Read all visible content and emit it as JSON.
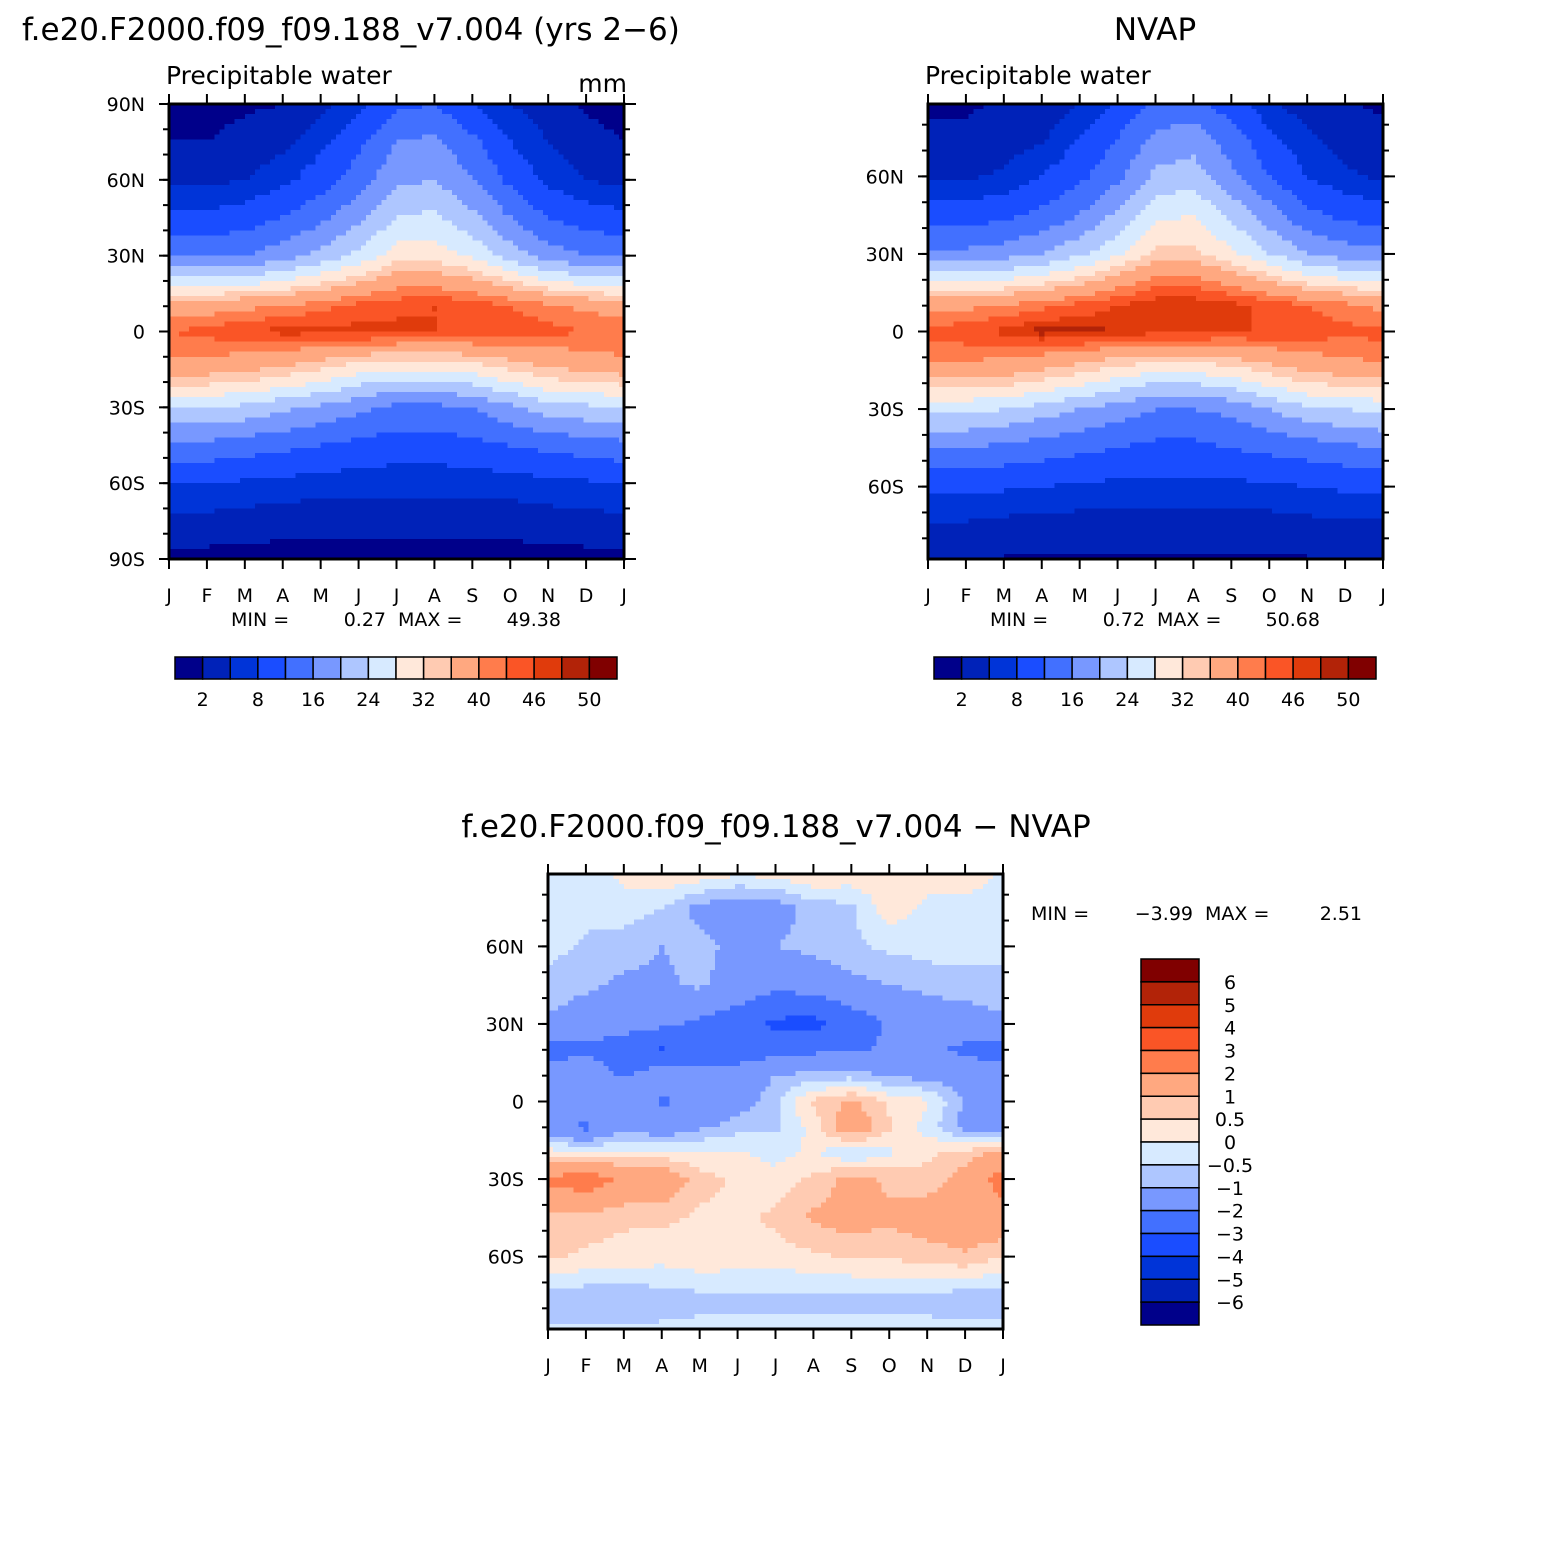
{
  "chart_data": [
    {
      "type": "heatmap",
      "panel": "model",
      "title": "f.e20.F2000.f09_f09.188_v7.004 (yrs 2−6)",
      "subtitle": "Precipitable water",
      "units": "mm",
      "x_ticks": [
        "J",
        "F",
        "M",
        "A",
        "M",
        "J",
        "J",
        "A",
        "S",
        "O",
        "N",
        "D",
        "J"
      ],
      "y_ticks": [
        "90N",
        "60N",
        "30N",
        "0",
        "30S",
        "60S",
        "90S"
      ],
      "min_label": "MIN =",
      "min_value": "0.27",
      "max_label": "MAX =",
      "max_value": "49.38",
      "levels": [
        2,
        5,
        8,
        12,
        16,
        20,
        24,
        28,
        32,
        35,
        40,
        43,
        46,
        48,
        50
      ],
      "level_labels": [
        "2",
        "8",
        "16",
        "24",
        "32",
        "40",
        "46",
        "50"
      ],
      "colors": [
        "#00008a",
        "#0022b8",
        "#0034d8",
        "#1a4dff",
        "#4270ff",
        "#7898ff",
        "#aec6ff",
        "#d7eaff",
        "#ffe8da",
        "#ffcbb2",
        "#ffa880",
        "#ff7c4c",
        "#fa5526",
        "#e03b0c",
        "#b22308",
        "#800000"
      ],
      "field": {
        "months": [
          "J",
          "F",
          "M",
          "A",
          "M",
          "J",
          "J",
          "A",
          "S",
          "O",
          "N",
          "D",
          "J"
        ],
        "lats": [
          90,
          75,
          60,
          45,
          30,
          20,
          10,
          0,
          -10,
          -20,
          -30,
          -45,
          -60,
          -75,
          -90
        ],
        "values": [
          [
            1,
            1,
            1.5,
            2,
            4,
            7,
            11,
            12,
            8,
            5,
            3,
            1.5,
            1
          ],
          [
            2,
            2,
            3,
            4,
            7,
            11,
            16,
            17,
            13,
            8,
            5,
            3,
            2
          ],
          [
            4,
            4,
            5,
            7,
            10,
            14,
            19,
            20,
            16,
            11,
            7,
            5,
            4
          ],
          [
            9,
            9,
            10,
            12,
            15,
            19,
            24,
            25,
            21,
            16,
            12,
            10,
            9
          ],
          [
            15,
            15,
            16,
            18,
            21,
            25,
            30,
            30,
            27,
            22,
            18,
            16,
            15
          ],
          [
            25,
            25,
            26,
            28,
            31,
            34,
            38,
            38,
            36,
            32,
            28,
            26,
            25
          ],
          [
            38,
            38,
            39,
            40,
            42,
            44,
            45,
            46,
            45,
            43,
            41,
            39,
            38
          ],
          [
            43,
            44,
            46,
            47,
            47,
            47,
            47,
            46,
            46,
            45,
            44,
            43,
            43
          ],
          [
            40,
            40,
            39,
            38,
            36,
            34,
            33,
            33,
            34,
            36,
            38,
            39,
            40
          ],
          [
            33,
            33,
            32,
            30,
            28,
            25,
            23,
            23,
            25,
            28,
            31,
            32,
            33
          ],
          [
            24,
            24,
            23,
            21,
            19,
            17,
            15,
            15,
            16,
            19,
            22,
            23,
            24
          ],
          [
            15,
            15,
            14,
            13,
            12,
            11,
            10,
            10,
            11,
            12,
            13,
            14,
            15
          ],
          [
            8,
            8,
            7.5,
            7,
            6.5,
            6,
            6,
            6,
            6,
            6.5,
            7,
            7.5,
            8
          ],
          [
            4,
            4,
            3.5,
            3,
            3,
            3,
            3,
            3,
            3,
            3,
            3.5,
            4,
            4
          ],
          [
            1,
            1,
            1,
            1,
            1,
            1,
            1,
            1,
            1,
            1,
            1,
            1,
            1
          ]
        ]
      }
    },
    {
      "type": "heatmap",
      "panel": "obs",
      "title": "NVAP",
      "subtitle": "Precipitable water",
      "x_ticks": [
        "J",
        "F",
        "M",
        "A",
        "M",
        "J",
        "J",
        "A",
        "S",
        "O",
        "N",
        "D",
        "J"
      ],
      "y_ticks": [
        "60N",
        "30N",
        "0",
        "30S",
        "60S"
      ],
      "min_label": "MIN =",
      "min_value": "0.72",
      "max_label": "MAX =",
      "max_value": "50.68",
      "levels": [
        2,
        5,
        8,
        12,
        16,
        20,
        24,
        28,
        32,
        35,
        40,
        43,
        46,
        48,
        50
      ],
      "level_labels": [
        "2",
        "8",
        "16",
        "24",
        "32",
        "40",
        "46",
        "50"
      ],
      "colors": [
        "#00008a",
        "#0022b8",
        "#0034d8",
        "#1a4dff",
        "#4270ff",
        "#7898ff",
        "#aec6ff",
        "#d7eaff",
        "#ffe8da",
        "#ffcbb2",
        "#ffa880",
        "#ff7c4c",
        "#fa5526",
        "#e03b0c",
        "#b22308",
        "#800000"
      ],
      "field": {
        "months": [
          "J",
          "F",
          "M",
          "A",
          "M",
          "J",
          "J",
          "A",
          "S",
          "O",
          "N",
          "D",
          "J"
        ],
        "lats": [
          90,
          75,
          60,
          45,
          30,
          20,
          10,
          0,
          -10,
          -20,
          -30,
          -45,
          -60,
          -75,
          -90
        ],
        "values": [
          [
            1.5,
            1.5,
            2,
            2.5,
            4.5,
            8,
            12,
            13,
            9,
            5,
            3,
            2,
            1.5
          ],
          [
            2.5,
            2.5,
            3.5,
            4.5,
            8,
            12,
            17,
            18,
            14,
            9,
            5.5,
            3.5,
            2.5
          ],
          [
            4.5,
            4.5,
            5.5,
            8,
            11,
            15,
            21,
            22,
            17,
            12,
            8,
            5.5,
            4.5
          ],
          [
            10,
            10,
            11,
            13,
            16,
            21,
            27,
            28,
            23,
            18,
            13,
            11,
            10
          ],
          [
            17,
            17,
            18,
            20,
            23,
            27,
            33,
            33,
            29,
            24,
            20,
            18,
            17
          ],
          [
            27,
            27,
            28,
            30,
            33,
            37,
            41,
            41,
            38,
            34,
            30,
            28,
            27
          ],
          [
            39,
            39,
            40,
            42,
            44,
            46,
            48,
            48,
            47,
            45,
            43,
            41,
            39
          ],
          [
            44,
            45,
            47,
            49,
            49,
            48,
            47,
            47,
            46,
            46,
            45,
            44,
            44
          ],
          [
            41,
            41,
            40,
            39,
            37,
            35,
            34,
            34,
            35,
            37,
            39,
            40,
            41
          ],
          [
            34,
            34,
            33,
            31,
            29,
            26,
            24,
            24,
            26,
            29,
            32,
            33,
            34
          ],
          [
            25,
            25,
            24,
            22,
            20,
            18,
            16,
            16,
            17,
            20,
            23,
            24,
            25
          ],
          [
            16,
            16,
            15,
            14,
            13,
            12,
            11,
            11,
            12,
            13,
            14,
            15,
            16
          ],
          [
            9,
            9,
            8.5,
            8,
            7.5,
            7,
            7,
            7,
            7,
            7.5,
            8,
            8.5,
            9
          ],
          [
            4.5,
            4.5,
            4,
            3.5,
            3.5,
            3.5,
            3.5,
            3.5,
            3.5,
            3.5,
            4,
            4.5,
            4.5
          ],
          [
            1.5,
            1.5,
            1.5,
            1.5,
            1.5,
            1.5,
            1.5,
            1.5,
            1.5,
            1.5,
            1.5,
            1.5,
            1.5
          ]
        ]
      }
    },
    {
      "type": "heatmap",
      "panel": "diff",
      "title": "f.e20.F2000.f09_f09.188_v7.004 − NVAP",
      "x_ticks": [
        "J",
        "F",
        "M",
        "A",
        "M",
        "J",
        "J",
        "A",
        "S",
        "O",
        "N",
        "D",
        "J"
      ],
      "y_ticks": [
        "60N",
        "30N",
        "0",
        "30S",
        "60S"
      ],
      "min_label": "MIN =",
      "min_value": "−3.99",
      "max_label": "MAX =",
      "max_value": "2.51",
      "levels": [
        -6,
        -5,
        -4,
        -3,
        -2,
        -1,
        -0.5,
        0,
        0.5,
        1,
        2,
        3,
        4,
        5,
        6
      ],
      "level_labels": [
        "6",
        "5",
        "4",
        "3",
        "2",
        "1",
        "0.5",
        "0",
        "−0.5",
        "−1",
        "−2",
        "−3",
        "−4",
        "−5",
        "−6"
      ],
      "colors": [
        "#00008a",
        "#0022b8",
        "#0034d8",
        "#1a4dff",
        "#4270ff",
        "#7898ff",
        "#aec6ff",
        "#d7eaff",
        "#ffe8da",
        "#ffcbb2",
        "#ffa880",
        "#ff7c4c",
        "#fa5526",
        "#e03b0c",
        "#b22308",
        "#800000"
      ],
      "field": {
        "months": [
          "J",
          "F",
          "M",
          "A",
          "M",
          "J",
          "J",
          "A",
          "S",
          "O",
          "N",
          "D",
          "J"
        ],
        "lats": [
          90,
          75,
          60,
          45,
          30,
          20,
          10,
          0,
          -10,
          -20,
          -30,
          -45,
          -60,
          -75,
          -90
        ],
        "values": [
          [
            -0.3,
            -0.3,
            0.2,
            0.6,
            0.6,
            0.3,
            0.4,
            0.7,
            0.5,
            0.3,
            0.2,
            0.6,
            -0.2
          ],
          [
            -0.2,
            -0.3,
            -0.2,
            -0.5,
            -1.2,
            -1.5,
            -1.3,
            -0.8,
            -0.6,
            0.3,
            -0.1,
            -0.3,
            -0.2
          ],
          [
            -0.3,
            -0.6,
            -0.8,
            -1,
            -0.8,
            -1.2,
            -1,
            -0.8,
            -0.6,
            -0.4,
            -0.3,
            -0.3,
            -0.3
          ],
          [
            -0.7,
            -0.9,
            -1.1,
            -1.1,
            -0.9,
            -1.3,
            -1.8,
            -1.6,
            -1.2,
            -1,
            -0.8,
            -0.7,
            -0.7
          ],
          [
            -1.1,
            -1.4,
            -1.6,
            -1.8,
            -2.2,
            -2.6,
            -3.2,
            -3.3,
            -2.6,
            -1.9,
            -1.6,
            -1.4,
            -1.1
          ],
          [
            -2.3,
            -2.2,
            -2.6,
            -3.1,
            -2.5,
            -2.5,
            -2.4,
            -2.2,
            -2.2,
            -1.8,
            -1.8,
            -2.2,
            -2.3
          ],
          [
            -1.6,
            -1.4,
            -2.1,
            -1.4,
            -1.8,
            -1.6,
            -1,
            -0.8,
            -0.7,
            -1.1,
            -1.2,
            -1.5,
            -1.6
          ],
          [
            -1.1,
            -1.5,
            -1.2,
            -2.1,
            -1.9,
            -1.4,
            -0.6,
            0.6,
            1.1,
            0.4,
            0.1,
            -1.1,
            -1.1
          ],
          [
            -1.6,
            -2.2,
            -1.2,
            -1.6,
            -1.1,
            -0.7,
            -0.6,
            0.2,
            1.6,
            0.6,
            -0.2,
            -1.2,
            -1.6
          ],
          [
            0.3,
            0.1,
            0.2,
            0.2,
            0.1,
            0.1,
            -0.2,
            0.1,
            -0.5,
            -0.1,
            0.4,
            0.7,
            1.3
          ],
          [
            2.2,
            2.6,
            1.8,
            1.7,
            0.7,
            0.4,
            0.2,
            0.6,
            1.2,
            0.9,
            0.7,
            1.3,
            2.4
          ],
          [
            0.9,
            0.8,
            0.6,
            0.6,
            0.4,
            0.4,
            0.6,
            1.1,
            1.3,
            1.1,
            1.4,
            1.6,
            1.6
          ],
          [
            0.6,
            0.4,
            0.3,
            0.2,
            0.4,
            0.3,
            0.3,
            0.4,
            0.6,
            0.6,
            0.7,
            0.9,
            0.5
          ],
          [
            -0.7,
            -0.8,
            -0.8,
            -0.7,
            -0.6,
            -0.6,
            -0.6,
            -0.6,
            -0.6,
            -0.6,
            -0.6,
            -0.7,
            -0.7
          ],
          [
            -0.4,
            -0.4,
            -0.4,
            -0.4,
            -0.4,
            -0.4,
            -0.4,
            -0.4,
            -0.4,
            -0.4,
            -0.4,
            -0.4,
            -0.4
          ]
        ]
      }
    }
  ]
}
